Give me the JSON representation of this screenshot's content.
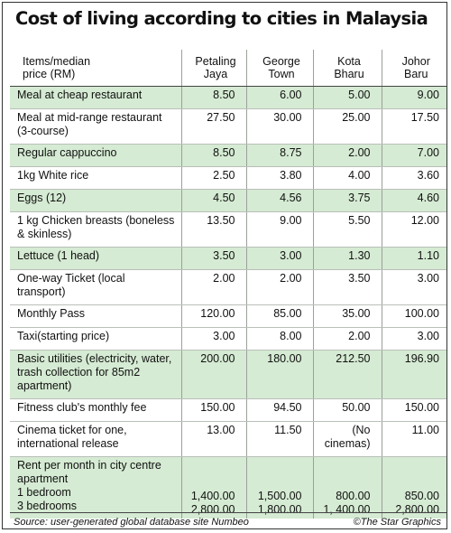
{
  "title": "Cost of living according to cities in Malaysia",
  "header": {
    "item": [
      "Items/median",
      "price (RM)"
    ],
    "cities": [
      [
        "Petaling",
        "Jaya"
      ],
      [
        "George",
        "Town"
      ],
      [
        "Kota",
        "Bharu"
      ],
      [
        "Johor",
        "Baru"
      ]
    ]
  },
  "rows": [
    {
      "item": [
        "Meal at cheap  restaurant"
      ],
      "values": [
        "8.50",
        "6.00",
        "5.00",
        "9.00"
      ],
      "shade": "green"
    },
    {
      "item": [
        "Meal at mid-range restaurant",
        "(3-course)"
      ],
      "values": [
        "27.50",
        "30.00",
        "25.00",
        "17.50"
      ],
      "shade": "white"
    },
    {
      "item": [
        "Regular cappuccino"
      ],
      "values": [
        "8.50",
        "8.75",
        "2.00",
        "7.00"
      ],
      "shade": "green"
    },
    {
      "item": [
        "1kg White rice"
      ],
      "values": [
        "2.50",
        "3.80",
        "4.00",
        "3.60"
      ],
      "shade": "white"
    },
    {
      "item": [
        "Eggs (12)"
      ],
      "values": [
        "4.50",
        "4.56",
        "3.75",
        "4.60"
      ],
      "shade": "green"
    },
    {
      "item": [
        "1 kg Chicken breasts (boneless",
        "& skinless)"
      ],
      "values": [
        "13.50",
        "9.00",
        "5.50",
        "12.00"
      ],
      "shade": "white"
    },
    {
      "item": [
        "Lettuce (1 head)"
      ],
      "values": [
        "3.50",
        "3.00",
        "1.30",
        "1.10"
      ],
      "shade": "green"
    },
    {
      "item": [
        "One-way Ticket (local",
        "transport)"
      ],
      "values": [
        "2.00",
        "2.00",
        "3.50",
        "3.00"
      ],
      "shade": "white"
    },
    {
      "item": [
        "Monthly Pass"
      ],
      "values": [
        "120.00",
        "85.00",
        "35.00",
        "100.00"
      ],
      "shade": "white"
    },
    {
      "item": [
        "Taxi(starting price)"
      ],
      "values": [
        "3.00",
        "8.00",
        "2.00",
        "3.00"
      ],
      "shade": "white"
    },
    {
      "item": [
        "Basic utilities (electricity, water,",
        "trash collection for 85m2",
        "apartment)"
      ],
      "values": [
        "200.00",
        "180.00",
        "212.50",
        "196.90"
      ],
      "shade": "green"
    },
    {
      "item": [
        "Fitness club's monthly fee"
      ],
      "values": [
        "150.00",
        "94.50",
        "50.00",
        "150.00"
      ],
      "shade": "white"
    },
    {
      "item": [
        "Cinema ticket for one,",
        "international release"
      ],
      "values": [
        "13.00",
        "11.50",
        "(No cinemas)",
        "11.00"
      ],
      "shade": "white"
    }
  ],
  "rent": {
    "label": [
      "Rent per month in city centre",
      "apartment"
    ],
    "lines": [
      {
        "label": "1 bedroom",
        "values": [
          "1,400.00",
          "1,500.00",
          "800.00",
          "850.00"
        ]
      },
      {
        "label": "3 bedrooms",
        "values": [
          "2,800.00",
          "1,800.00",
          "1, 400.00",
          "2,800.00"
        ]
      }
    ],
    "shade": "green"
  },
  "footer": {
    "source": "Source: user-generated global database site Numbeo",
    "credit": "©The Star Graphics"
  }
}
